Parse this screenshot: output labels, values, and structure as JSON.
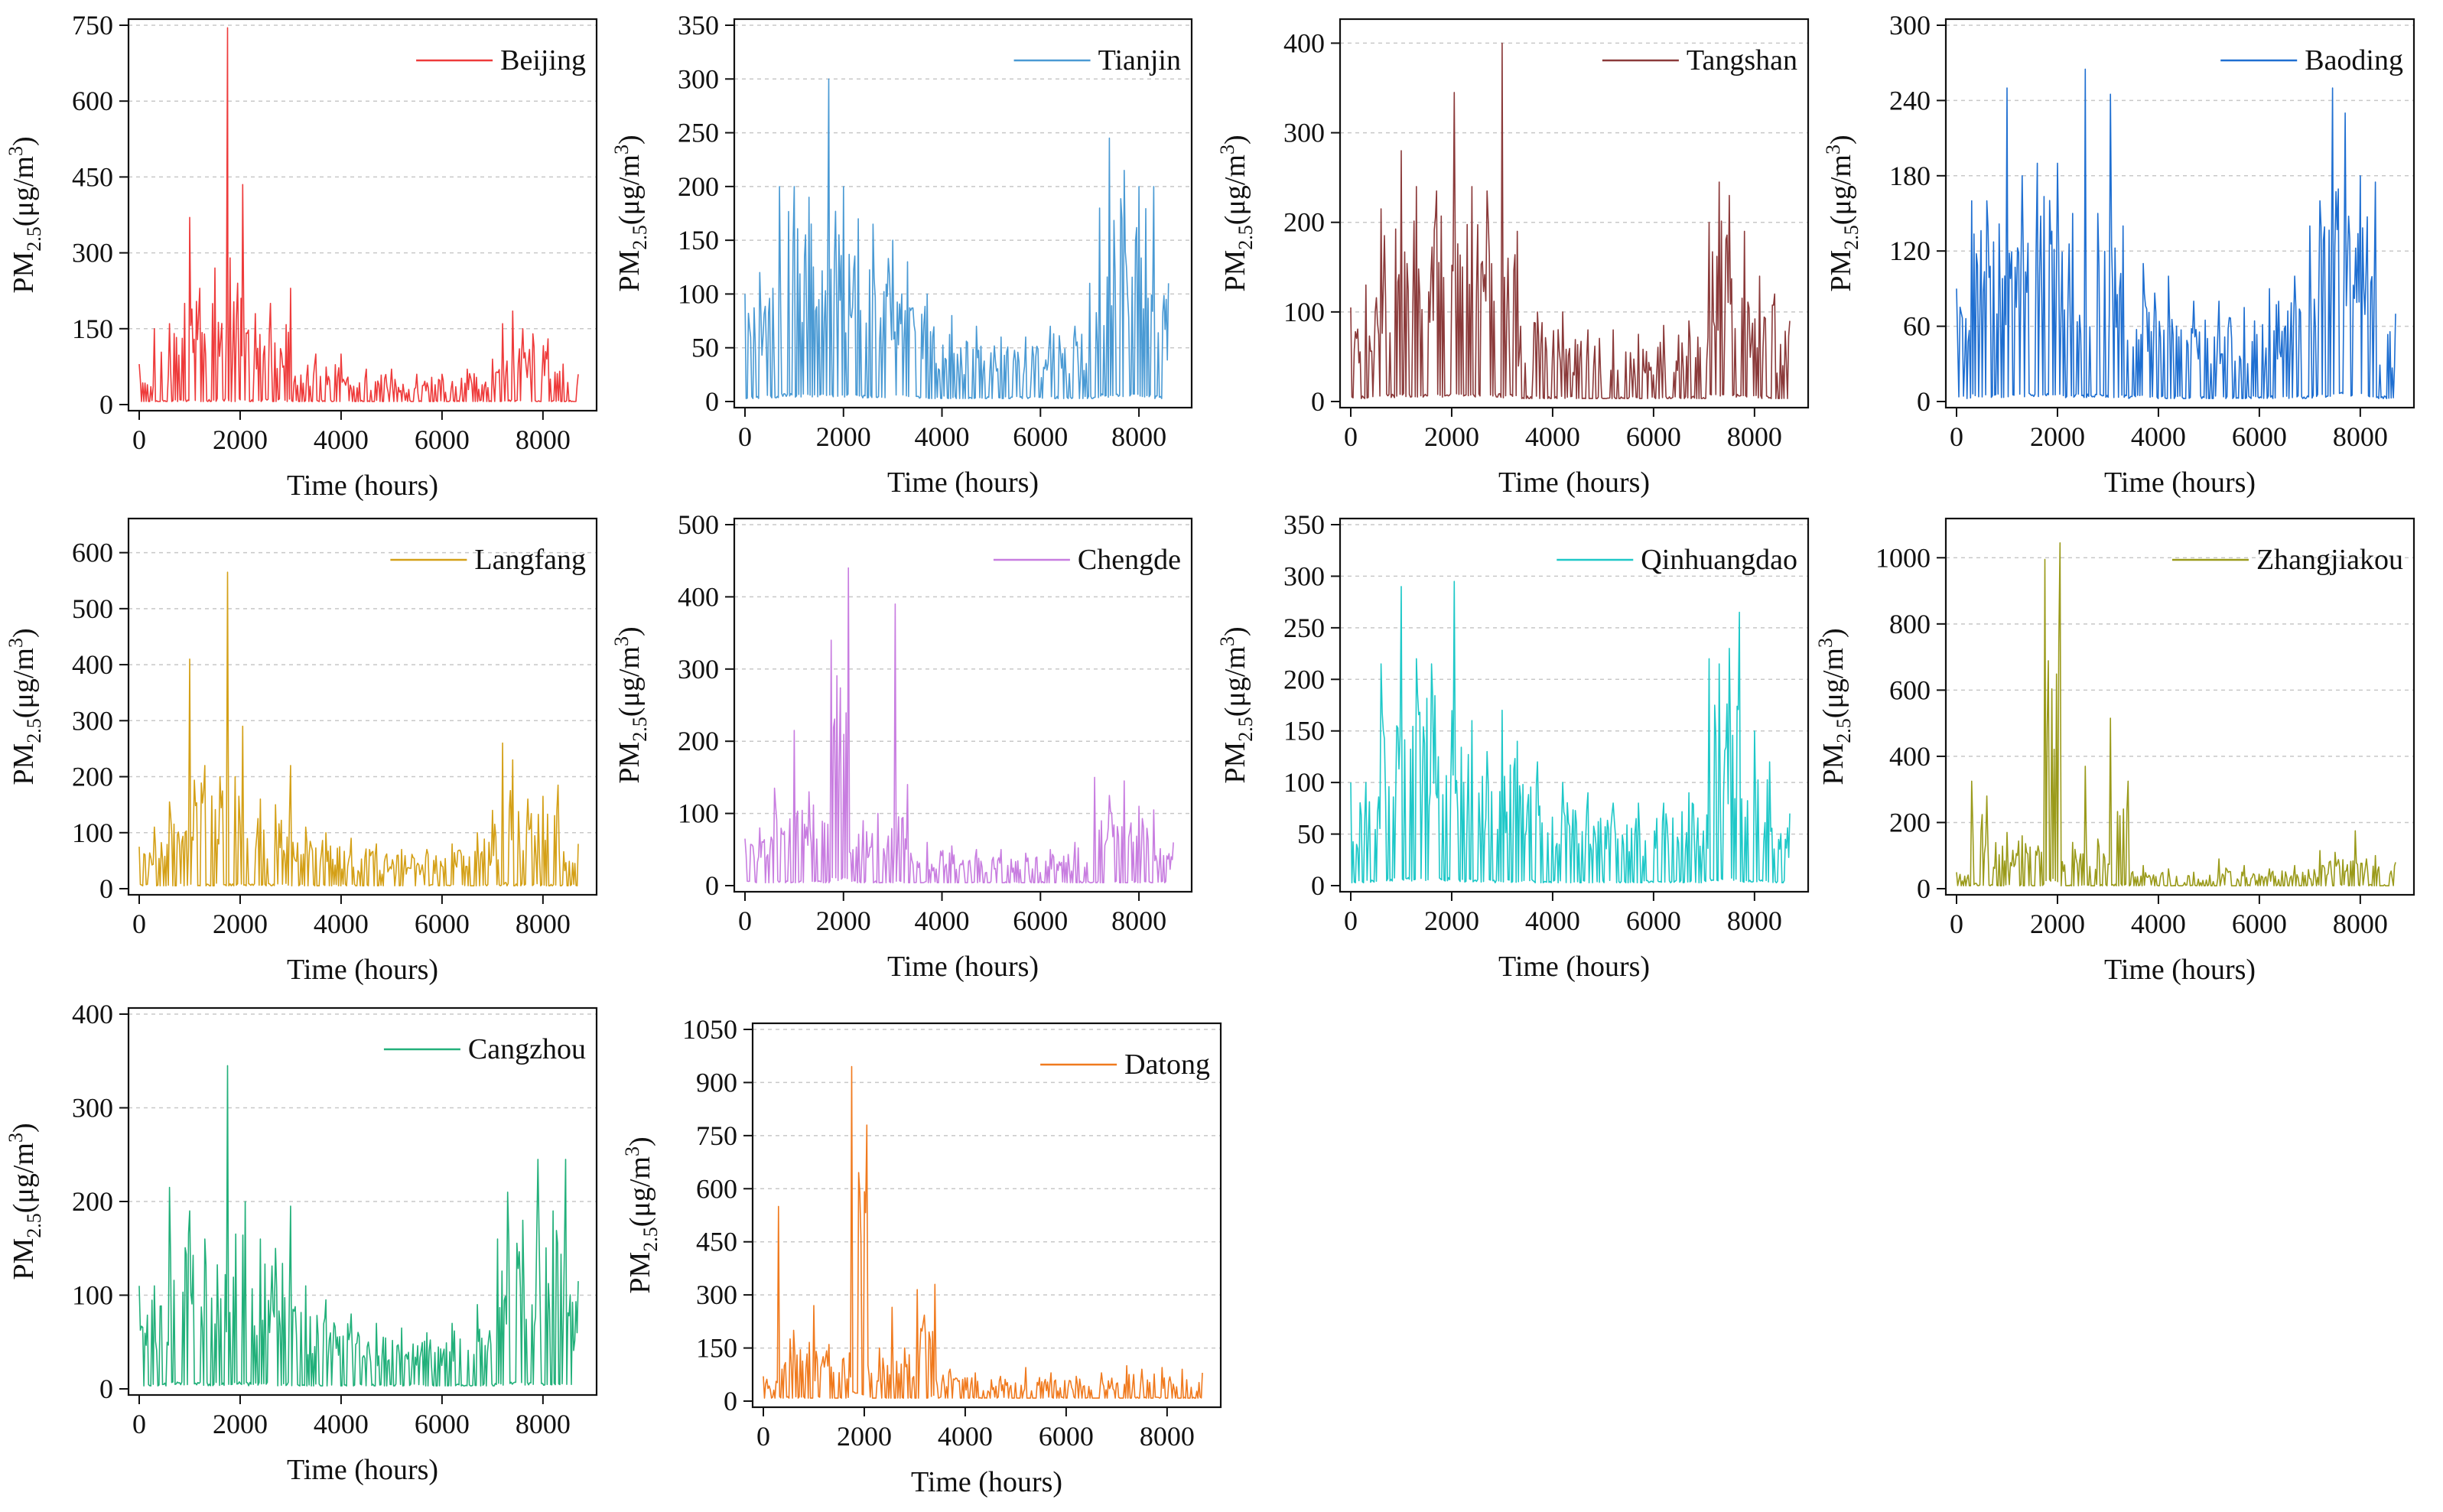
{
  "chart_data": [
    {
      "type": "line",
      "city": "Beijing",
      "color": "#ee3b3b",
      "title": "",
      "xlabel": "Time (hours)",
      "ylabel_main": "PM",
      "ylabel_sub": "2.5",
      "ylabel_unit": "(μg/m",
      "ylabel_sup": "3",
      "ylabel_close": ")",
      "xlim": [
        0,
        8760
      ],
      "ylim": [
        0,
        750
      ],
      "xticks": [
        0,
        2000,
        4000,
        6000,
        8000
      ],
      "yticks": [
        0,
        150,
        300,
        450,
        600,
        750
      ],
      "x": [
        0,
        300,
        600,
        900,
        1000,
        1200,
        1500,
        1750,
        1800,
        1950,
        2050,
        2300,
        2600,
        3000,
        3500,
        4000,
        4500,
        5000,
        5500,
        6000,
        6500,
        7000,
        7200,
        7400,
        7600,
        7800,
        8100,
        8400,
        8700
      ],
      "y": [
        80,
        150,
        160,
        200,
        370,
        230,
        270,
        745,
        290,
        240,
        435,
        180,
        200,
        230,
        100,
        100,
        70,
        70,
        60,
        60,
        70,
        90,
        160,
        185,
        150,
        140,
        130,
        80,
        60
      ]
    },
    {
      "type": "line",
      "city": "Tianjin",
      "color": "#4a9ad4",
      "title": "",
      "xlabel": "Time (hours)",
      "ylabel_main": "PM",
      "ylabel_sub": "2.5",
      "ylabel_unit": "(μg/m",
      "ylabel_sup": "3",
      "ylabel_close": ")",
      "xlim": [
        0,
        8760
      ],
      "ylim": [
        0,
        350
      ],
      "xticks": [
        0,
        2000,
        4000,
        6000,
        8000
      ],
      "yticks": [
        0,
        50,
        100,
        150,
        200,
        250,
        300,
        350
      ],
      "x": [
        0,
        300,
        700,
        1000,
        1300,
        1700,
        2000,
        2300,
        2600,
        3000,
        3300,
        3700,
        4200,
        4700,
        5200,
        5700,
        6200,
        6700,
        7000,
        7200,
        7400,
        7700,
        8000,
        8300,
        8600
      ],
      "y": [
        100,
        120,
        200,
        200,
        190,
        300,
        200,
        170,
        165,
        150,
        130,
        100,
        80,
        70,
        60,
        60,
        70,
        70,
        110,
        180,
        245,
        215,
        200,
        200,
        110
      ]
    },
    {
      "type": "line",
      "city": "Tangshan",
      "color": "#8b3a3a",
      "title": "",
      "xlabel": "Time (hours)",
      "ylabel_main": "PM",
      "ylabel_sub": "2.5",
      "ylabel_unit": "(μg/m",
      "ylabel_sup": "3",
      "ylabel_close": ")",
      "xlim": [
        0,
        8760
      ],
      "ylim": [
        0,
        420
      ],
      "xticks": [
        0,
        2000,
        4000,
        6000,
        8000
      ],
      "yticks": [
        0,
        100,
        200,
        300,
        400
      ],
      "x": [
        0,
        300,
        600,
        1000,
        1300,
        1700,
        2050,
        2400,
        2700,
        3000,
        3300,
        3700,
        4200,
        4700,
        5200,
        5700,
        6200,
        6700,
        7100,
        7300,
        7500,
        7800,
        8100,
        8400,
        8700
      ],
      "y": [
        105,
        130,
        215,
        280,
        240,
        235,
        345,
        240,
        235,
        400,
        190,
        100,
        100,
        80,
        80,
        75,
        85,
        90,
        200,
        245,
        230,
        190,
        140,
        120,
        90
      ]
    },
    {
      "type": "line",
      "city": "Baoding",
      "color": "#1f6fd1",
      "title": "",
      "xlabel": "Time (hours)",
      "ylabel_main": "PM",
      "ylabel_sub": "2.5",
      "ylabel_unit": "(μg/m",
      "ylabel_sup": "3",
      "ylabel_close": ")",
      "xlim": [
        0,
        8760
      ],
      "ylim": [
        0,
        300
      ],
      "xticks": [
        0,
        2000,
        4000,
        6000,
        8000
      ],
      "yticks": [
        0,
        60,
        120,
        180,
        240,
        300
      ],
      "x": [
        0,
        300,
        600,
        1000,
        1300,
        1600,
        2000,
        2300,
        2550,
        2800,
        3050,
        3300,
        3700,
        4200,
        4700,
        5200,
        5700,
        6200,
        6700,
        7000,
        7200,
        7450,
        7700,
        8000,
        8300,
        8700
      ],
      "y": [
        90,
        160,
        160,
        250,
        180,
        190,
        190,
        150,
        265,
        150,
        245,
        140,
        110,
        100,
        80,
        80,
        75,
        90,
        100,
        140,
        160,
        250,
        230,
        180,
        175,
        70
      ]
    },
    {
      "type": "line",
      "city": "Langfang",
      "color": "#d4a017",
      "title": "",
      "xlabel": "Time (hours)",
      "ylabel_main": "PM",
      "ylabel_sub": "2.5",
      "ylabel_unit": "(μg/m",
      "ylabel_sup": "3",
      "ylabel_close": ")",
      "xlim": [
        0,
        8760
      ],
      "ylim": [
        0,
        650
      ],
      "xticks": [
        0,
        2000,
        4000,
        6000,
        8000
      ],
      "yticks": [
        0,
        100,
        200,
        300,
        400,
        500,
        600
      ],
      "x": [
        0,
        300,
        600,
        1000,
        1300,
        1600,
        1750,
        1900,
        2050,
        2400,
        2700,
        3000,
        3300,
        3700,
        4200,
        4700,
        5200,
        5700,
        6200,
        6700,
        7000,
        7200,
        7400,
        7700,
        8000,
        8300,
        8700
      ],
      "y": [
        75,
        110,
        155,
        410,
        220,
        200,
        565,
        200,
        290,
        160,
        150,
        220,
        110,
        100,
        90,
        80,
        70,
        70,
        80,
        100,
        140,
        260,
        230,
        160,
        165,
        185,
        80
      ]
    },
    {
      "type": "line",
      "city": "Chengde",
      "color": "#c87de0",
      "title": "",
      "xlabel": "Time (hours)",
      "ylabel_main": "PM",
      "ylabel_sub": "2.5",
      "ylabel_unit": "(μg/m",
      "ylabel_sup": "3",
      "ylabel_close": ")",
      "xlim": [
        0,
        8760
      ],
      "ylim": [
        0,
        500
      ],
      "xticks": [
        0,
        2000,
        4000,
        6000,
        8000
      ],
      "yticks": [
        0,
        100,
        200,
        300,
        400,
        500
      ],
      "x": [
        0,
        300,
        600,
        1000,
        1300,
        1750,
        2100,
        2400,
        2700,
        3050,
        3300,
        3700,
        4200,
        4700,
        5200,
        5700,
        6200,
        6700,
        7100,
        7400,
        7700,
        8000,
        8300,
        8700
      ],
      "y": [
        65,
        80,
        135,
        215,
        130,
        340,
        440,
        90,
        100,
        390,
        140,
        60,
        55,
        50,
        50,
        45,
        50,
        60,
        150,
        125,
        145,
        110,
        105,
        60
      ]
    },
    {
      "type": "line",
      "city": "Qinhuangdao",
      "color": "#1ec8c8",
      "title": "",
      "xlabel": "Time (hours)",
      "ylabel_main": "PM",
      "ylabel_sub": "2.5",
      "ylabel_unit": "(μg/m",
      "ylabel_sup": "3",
      "ylabel_close": ")",
      "xlim": [
        0,
        8760
      ],
      "ylim": [
        0,
        350
      ],
      "xticks": [
        0,
        2000,
        4000,
        6000,
        8000
      ],
      "yticks": [
        0,
        50,
        100,
        150,
        200,
        250,
        300,
        350
      ],
      "x": [
        0,
        300,
        600,
        1000,
        1300,
        1600,
        2050,
        2400,
        2700,
        3000,
        3300,
        3700,
        4200,
        4700,
        5200,
        5700,
        6200,
        6700,
        7100,
        7300,
        7500,
        7700,
        8000,
        8300,
        8700
      ],
      "y": [
        100,
        100,
        215,
        290,
        220,
        215,
        295,
        160,
        130,
        170,
        140,
        120,
        100,
        90,
        80,
        80,
        80,
        90,
        220,
        215,
        230,
        265,
        150,
        120,
        70
      ]
    },
    {
      "type": "line",
      "city": "Zhangjiakou",
      "color": "#9a9a1a",
      "title": "",
      "xlabel": "Time (hours)",
      "ylabel_main": "PM",
      "ylabel_sub": "2.5",
      "ylabel_unit": "(μg/m",
      "ylabel_sup": "3",
      "ylabel_close": ")",
      "xlim": [
        0,
        8760
      ],
      "ylim": [
        0,
        1100
      ],
      "xticks": [
        0,
        2000,
        4000,
        6000,
        8000
      ],
      "yticks": [
        0,
        200,
        400,
        600,
        800,
        1000
      ],
      "x": [
        0,
        300,
        600,
        1000,
        1300,
        1750,
        2050,
        2300,
        2550,
        2800,
        3050,
        3400,
        3700,
        4200,
        4700,
        5200,
        5700,
        6200,
        6700,
        7200,
        7500,
        7900,
        8300,
        8700
      ],
      "y": [
        50,
        325,
        280,
        170,
        160,
        995,
        1045,
        140,
        370,
        150,
        515,
        325,
        70,
        60,
        50,
        90,
        70,
        60,
        70,
        115,
        110,
        175,
        100,
        80
      ]
    },
    {
      "type": "line",
      "city": "Cangzhou",
      "color": "#22b07a",
      "title": "",
      "xlabel": "Time (hours)",
      "ylabel_main": "PM",
      "ylabel_sub": "2.5",
      "ylabel_unit": "(μg/m",
      "ylabel_sup": "3",
      "ylabel_close": ")",
      "xlim": [
        0,
        8760
      ],
      "ylim": [
        0,
        400
      ],
      "xticks": [
        0,
        2000,
        4000,
        6000,
        8000
      ],
      "yticks": [
        0,
        100,
        200,
        300,
        400
      ],
      "x": [
        0,
        300,
        600,
        1000,
        1300,
        1750,
        2100,
        2400,
        2700,
        3000,
        3300,
        3700,
        4200,
        4700,
        5200,
        5700,
        6200,
        6700,
        7100,
        7300,
        7600,
        7900,
        8200,
        8450,
        8700
      ],
      "y": [
        110,
        110,
        215,
        190,
        160,
        345,
        200,
        160,
        150,
        195,
        110,
        95,
        80,
        70,
        65,
        60,
        70,
        90,
        160,
        210,
        180,
        245,
        190,
        245,
        115
      ]
    },
    {
      "type": "line",
      "city": "Datong",
      "color": "#f07a1e",
      "title": "",
      "xlabel": "Time (hours)",
      "ylabel_main": "PM",
      "ylabel_sub": "2.5",
      "ylabel_unit": "(μg/m",
      "ylabel_sup": "3",
      "ylabel_close": ")",
      "xlim": [
        0,
        8760
      ],
      "ylim": [
        0,
        1050
      ],
      "xticks": [
        0,
        2000,
        4000,
        6000,
        8000
      ],
      "yticks": [
        0,
        150,
        300,
        450,
        600,
        750,
        900,
        1050
      ],
      "x": [
        0,
        300,
        600,
        1000,
        1300,
        1750,
        2050,
        2300,
        2550,
        2800,
        3050,
        3400,
        3700,
        4200,
        4700,
        5200,
        5700,
        6200,
        6700,
        7200,
        7500,
        7900,
        8300,
        8700
      ],
      "y": [
        70,
        550,
        200,
        270,
        160,
        945,
        780,
        150,
        265,
        150,
        315,
        330,
        90,
        80,
        70,
        95,
        80,
        70,
        80,
        100,
        90,
        95,
        90,
        80
      ]
    }
  ]
}
